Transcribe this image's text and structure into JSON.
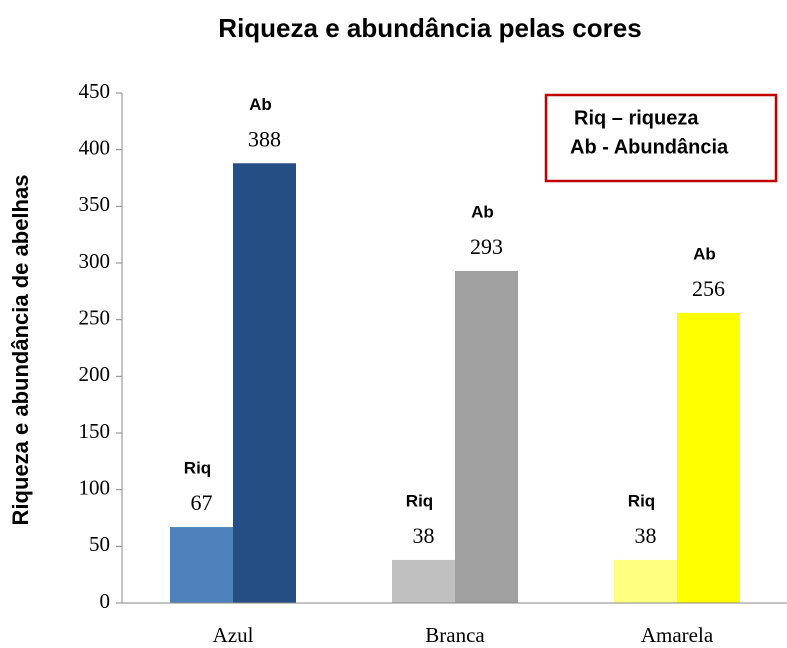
{
  "chart_data": {
    "type": "bar",
    "title": "Riqueza e abundância pelas cores",
    "y_label": "Riqueza e abundância de abelhas",
    "categories": [
      "Azul",
      "Branca",
      "Amarela"
    ],
    "series": [
      {
        "name": "Riq",
        "colors": [
          "#4f81bd",
          "#c0c0c0",
          "#ffff80"
        ],
        "values": [
          67,
          38,
          38
        ]
      },
      {
        "name": "Ab",
        "colors": [
          "#254e84",
          "#a0a0a0",
          "#ffff00"
        ],
        "values": [
          388,
          293,
          256
        ]
      }
    ],
    "legend_box": [
      "Riq – riqueza",
      "Ab - Abundância"
    ],
    "legend_color": "#c00000",
    "ylim": [
      0,
      450
    ],
    "yticks": [
      0,
      50,
      100,
      150,
      200,
      250,
      300,
      350,
      400,
      450
    ],
    "grid": false
  }
}
